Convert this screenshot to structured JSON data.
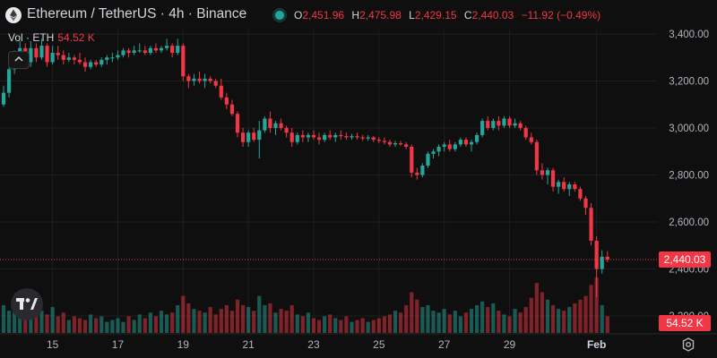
{
  "header": {
    "title": "Ethereum / TetherUS · 4h · Binance",
    "open_label": "O",
    "open": "2,451.96",
    "high_label": "H",
    "high": "2,475.98",
    "low_label": "L",
    "low": "2,429.15",
    "close_label": "C",
    "close": "2,440.03",
    "change": "−11.92 (−0.49%)",
    "vol_label": "Vol · ETH",
    "vol_value": "54.52 K"
  },
  "icons": {
    "symbol": "ethereum-icon",
    "status": "market-open-dot",
    "collapse": "chevron-up-icon",
    "brand": "tradingview-logo",
    "settings": "gear-icon"
  },
  "colors": {
    "up": "#26a69a",
    "down": "#f23645",
    "background": "#0f0f0f",
    "text": "#d1d4dc"
  },
  "chart_data": {
    "type": "candlestick",
    "interval": "4h",
    "y_axis": {
      "ticks": [
        "3,400.00",
        "3,200.00",
        "3,000.00",
        "2,800.00",
        "2,600.00",
        "2,400.00",
        "2,200.00"
      ],
      "tick_values": [
        3400,
        3200,
        3000,
        2800,
        2600,
        2400,
        2200
      ],
      "ylim": [
        2200,
        3480
      ]
    },
    "x_axis": {
      "ticks": [
        "15",
        "17",
        "19",
        "21",
        "23",
        "25",
        "27",
        "29",
        "Feb"
      ],
      "tick_bar_index": [
        9,
        21,
        33,
        45,
        57,
        69,
        81,
        93,
        109
      ]
    },
    "last_price_label": "2,440.03",
    "last_volume_label": "54.52 K",
    "ohlc": [
      [
        3100,
        3180,
        3090,
        3150
      ],
      [
        3150,
        3260,
        3130,
        3250
      ],
      [
        3250,
        3330,
        3230,
        3310
      ],
      [
        3310,
        3370,
        3280,
        3340
      ],
      [
        3340,
        3360,
        3250,
        3280
      ],
      [
        3280,
        3370,
        3260,
        3340
      ],
      [
        3340,
        3360,
        3280,
        3300
      ],
      [
        3300,
        3380,
        3290,
        3350
      ],
      [
        3350,
        3360,
        3260,
        3280
      ],
      [
        3280,
        3350,
        3270,
        3320
      ],
      [
        3320,
        3350,
        3290,
        3310
      ],
      [
        3310,
        3330,
        3270,
        3290
      ],
      [
        3290,
        3320,
        3280,
        3300
      ],
      [
        3300,
        3310,
        3270,
        3290
      ],
      [
        3290,
        3320,
        3270,
        3280
      ],
      [
        3280,
        3300,
        3240,
        3260
      ],
      [
        3260,
        3290,
        3250,
        3280
      ],
      [
        3280,
        3290,
        3260,
        3270
      ],
      [
        3270,
        3300,
        3260,
        3290
      ],
      [
        3290,
        3310,
        3270,
        3300
      ],
      [
        3300,
        3320,
        3280,
        3300
      ],
      [
        3300,
        3330,
        3290,
        3310
      ],
      [
        3310,
        3340,
        3300,
        3330
      ],
      [
        3330,
        3340,
        3300,
        3320
      ],
      [
        3320,
        3350,
        3310,
        3330
      ],
      [
        3330,
        3360,
        3320,
        3330
      ],
      [
        3330,
        3350,
        3310,
        3320
      ],
      [
        3320,
        3350,
        3310,
        3340
      ],
      [
        3340,
        3360,
        3320,
        3330
      ],
      [
        3330,
        3350,
        3320,
        3340
      ],
      [
        3340,
        3380,
        3330,
        3350
      ],
      [
        3350,
        3360,
        3300,
        3320
      ],
      [
        3320,
        3380,
        3310,
        3350
      ],
      [
        3350,
        3360,
        3200,
        3220
      ],
      [
        3220,
        3230,
        3170,
        3200
      ],
      [
        3200,
        3230,
        3180,
        3210
      ],
      [
        3210,
        3240,
        3190,
        3200
      ],
      [
        3200,
        3230,
        3170,
        3210
      ],
      [
        3210,
        3220,
        3190,
        3200
      ],
      [
        3200,
        3210,
        3170,
        3180
      ],
      [
        3180,
        3210,
        3120,
        3130
      ],
      [
        3130,
        3150,
        3080,
        3100
      ],
      [
        3100,
        3120,
        3050,
        3060
      ],
      [
        3060,
        3070,
        2960,
        2980
      ],
      [
        2980,
        3000,
        2920,
        2940
      ],
      [
        2940,
        2990,
        2920,
        2980
      ],
      [
        2980,
        3000,
        2940,
        2950
      ],
      [
        2950,
        3030,
        2870,
        2990
      ],
      [
        2990,
        3050,
        2980,
        3040
      ],
      [
        3040,
        3070,
        2980,
        3000
      ],
      [
        3000,
        3030,
        2970,
        3020
      ],
      [
        3020,
        3040,
        2990,
        3000
      ],
      [
        3000,
        3010,
        2960,
        2980
      ],
      [
        2980,
        3000,
        2920,
        2940
      ],
      [
        2940,
        2980,
        2930,
        2970
      ],
      [
        2970,
        2990,
        2940,
        2960
      ],
      [
        2960,
        2980,
        2940,
        2970
      ],
      [
        2970,
        2990,
        2950,
        2960
      ],
      [
        2960,
        2980,
        2930,
        2950
      ],
      [
        2950,
        2980,
        2940,
        2970
      ],
      [
        2970,
        2990,
        2950,
        2960
      ],
      [
        2960,
        2980,
        2940,
        2970
      ],
      [
        2970,
        2990,
        2950,
        2965
      ],
      [
        2965,
        2980,
        2950,
        2960
      ],
      [
        2960,
        2975,
        2950,
        2965
      ],
      [
        2965,
        2980,
        2950,
        2960
      ],
      [
        2960,
        2970,
        2945,
        2955
      ],
      [
        2955,
        2970,
        2945,
        2960
      ],
      [
        2960,
        2965,
        2940,
        2950
      ],
      [
        2950,
        2960,
        2935,
        2945
      ],
      [
        2945,
        2960,
        2930,
        2940
      ],
      [
        2940,
        2950,
        2920,
        2930
      ],
      [
        2930,
        2945,
        2920,
        2935
      ],
      [
        2935,
        2945,
        2925,
        2930
      ],
      [
        2930,
        2940,
        2910,
        2920
      ],
      [
        2920,
        2930,
        2790,
        2810
      ],
      [
        2810,
        2830,
        2780,
        2800
      ],
      [
        2800,
        2850,
        2790,
        2840
      ],
      [
        2840,
        2900,
        2830,
        2890
      ],
      [
        2890,
        2910,
        2870,
        2900
      ],
      [
        2900,
        2930,
        2880,
        2920
      ],
      [
        2920,
        2940,
        2900,
        2930
      ],
      [
        2930,
        2950,
        2900,
        2910
      ],
      [
        2910,
        2940,
        2900,
        2930
      ],
      [
        2930,
        2960,
        2920,
        2950
      ],
      [
        2950,
        2960,
        2920,
        2930
      ],
      [
        2930,
        2950,
        2900,
        2940
      ],
      [
        2940,
        2980,
        2930,
        2970
      ],
      [
        2970,
        3040,
        2960,
        3030
      ],
      [
        3030,
        3050,
        2990,
        3000
      ],
      [
        3000,
        3040,
        2990,
        3030
      ],
      [
        3030,
        3050,
        2990,
        3010
      ],
      [
        3010,
        3050,
        3000,
        3040
      ],
      [
        3040,
        3050,
        3000,
        3010
      ],
      [
        3010,
        3040,
        3000,
        3020
      ],
      [
        3020,
        3030,
        2990,
        3000
      ],
      [
        3000,
        3010,
        2950,
        2960
      ],
      [
        2960,
        2980,
        2930,
        2940
      ],
      [
        2940,
        2950,
        2800,
        2820
      ],
      [
        2820,
        2850,
        2780,
        2800
      ],
      [
        2800,
        2830,
        2760,
        2820
      ],
      [
        2820,
        2830,
        2730,
        2750
      ],
      [
        2750,
        2780,
        2720,
        2770
      ],
      [
        2770,
        2790,
        2730,
        2740
      ],
      [
        2740,
        2770,
        2710,
        2760
      ],
      [
        2760,
        2770,
        2730,
        2740
      ],
      [
        2740,
        2750,
        2690,
        2700
      ],
      [
        2700,
        2710,
        2630,
        2660
      ],
      [
        2660,
        2680,
        2500,
        2520
      ],
      [
        2520,
        2540,
        2280,
        2400
      ],
      [
        2400,
        2480,
        2380,
        2452
      ],
      [
        2452,
        2476,
        2429,
        2440
      ]
    ],
    "volume": [
      30,
      24,
      28,
      22,
      20,
      26,
      22,
      24,
      20,
      28,
      18,
      22,
      14,
      18,
      16,
      14,
      20,
      16,
      18,
      12,
      14,
      16,
      12,
      18,
      14,
      20,
      16,
      22,
      18,
      24,
      20,
      22,
      30,
      40,
      32,
      26,
      24,
      22,
      28,
      20,
      26,
      30,
      24,
      36,
      30,
      28,
      24,
      40,
      30,
      32,
      22,
      26,
      24,
      30,
      20,
      18,
      22,
      16,
      14,
      18,
      20,
      16,
      14,
      18,
      12,
      14,
      16,
      12,
      14,
      16,
      18,
      20,
      24,
      22,
      30,
      44,
      36,
      28,
      30,
      24,
      22,
      26,
      20,
      24,
      18,
      22,
      26,
      30,
      34,
      28,
      32,
      24,
      20,
      18,
      26,
      22,
      28,
      38,
      54,
      44,
      36,
      30,
      26,
      24,
      28,
      32,
      36,
      40,
      52,
      60,
      30,
      18
    ]
  }
}
